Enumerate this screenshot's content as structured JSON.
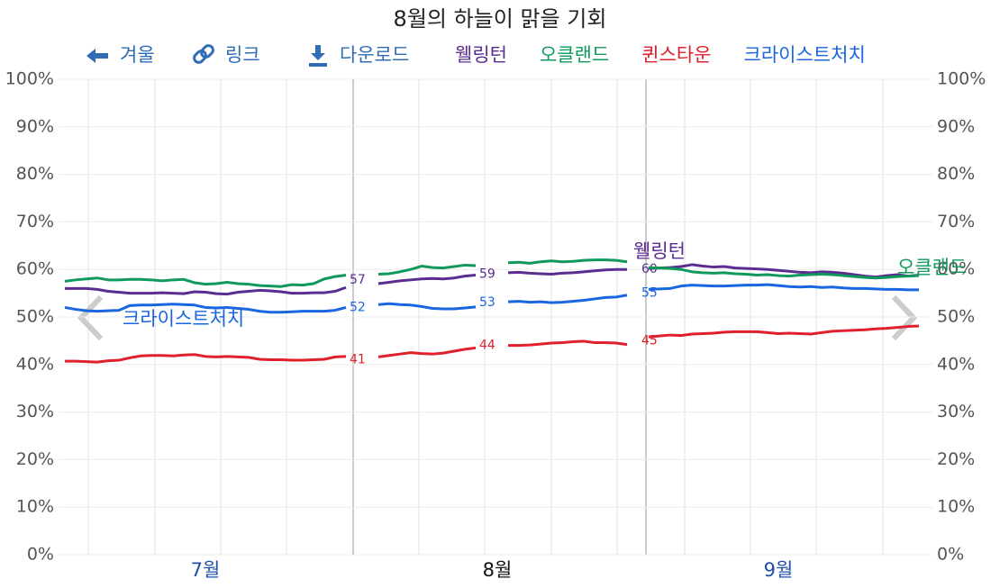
{
  "title": "8월의 하늘이 맑을 기회",
  "nav": [
    "겨울",
    "링크",
    "다운로드"
  ],
  "chart_data": {
    "type": "line",
    "categories": [
      null,
      null,
      null,
      null,
      null,
      null,
      null,
      null,
      null,
      null,
      null,
      null,
      null,
      "7월",
      null,
      null,
      null,
      null,
      null,
      null,
      null,
      null,
      null,
      null,
      null,
      null,
      null,
      null,
      null,
      null,
      null,
      null,
      null,
      null,
      null,
      null,
      null,
      null,
      null,
      null,
      "8월",
      null,
      null,
      null,
      null,
      null,
      null,
      null,
      null,
      null,
      null,
      null,
      null,
      null,
      null,
      null,
      null,
      null,
      null,
      null,
      null,
      null,
      null,
      null,
      null,
      null,
      "9월",
      null,
      null,
      null,
      null,
      null,
      null,
      null,
      null,
      null,
      null,
      null,
      null,
      null
    ],
    "category_label_colors": {
      "7월": "#1f4fa8",
      "8월": "#111111",
      "9월": "#1f4fa8"
    },
    "ylim": [
      0,
      100
    ],
    "yticks": [
      {
        "value": 0,
        "label": "0%"
      },
      {
        "value": 10,
        "label": "10%"
      },
      {
        "value": 20,
        "label": "20%"
      },
      {
        "value": 30,
        "label": "30%"
      },
      {
        "value": 40,
        "label": "40%"
      },
      {
        "value": 50,
        "label": "50%"
      },
      {
        "value": 60,
        "label": "60%"
      },
      {
        "value": 70,
        "label": "70%"
      },
      {
        "value": 80,
        "label": "80%"
      },
      {
        "value": 90,
        "label": "90%"
      },
      {
        "value": 100,
        "label": "100%"
      }
    ],
    "grid": true,
    "series": [
      {
        "name": "웰링턴",
        "color": "#5b2d90",
        "end_labels": [
          57,
          59,
          60
        ],
        "values": [
          56,
          56,
          56,
          55.8,
          55.4,
          55.2,
          55,
          55,
          55,
          55.1,
          55,
          54.9,
          55.3,
          55.2,
          54.9,
          54.8,
          55.2,
          55.4,
          55.6,
          55.5,
          55.3,
          55,
          55,
          55.1,
          55.1,
          55.4,
          56.2,
          null,
          null,
          57,
          57.3,
          57.6,
          57.8,
          58,
          58.1,
          58,
          58.2,
          58.6,
          58.8,
          null,
          null,
          59.3,
          59.4,
          59.2,
          59.1,
          59,
          59.2,
          59.3,
          59.5,
          59.7,
          59.9,
          60,
          60,
          null,
          60.2,
          60.3,
          60.4,
          60.6,
          61,
          60.7,
          60.5,
          60.6,
          60.3,
          60.2,
          60.1,
          60,
          59.8,
          59.6,
          59.4,
          59.3,
          59.5,
          59.4,
          59.2,
          58.9,
          58.6,
          58.4,
          58.7,
          58.9,
          58.6,
          58.8
        ]
      },
      {
        "name": "오클랜드",
        "color": "#0f9a5c",
        "end_labels": [],
        "values": [
          57.5,
          57.8,
          58,
          58.2,
          57.8,
          57.8,
          57.9,
          57.9,
          57.8,
          57.6,
          57.8,
          57.9,
          57.2,
          56.9,
          57,
          57.3,
          57,
          56.9,
          56.6,
          56.5,
          56.4,
          56.8,
          56.7,
          57,
          58,
          58.5,
          58.8,
          null,
          null,
          59,
          59.1,
          59.5,
          60,
          60.7,
          60.4,
          60.3,
          60.6,
          60.9,
          60.8,
          null,
          null,
          61.4,
          61.5,
          61.3,
          61.6,
          61.8,
          61.6,
          61.7,
          61.9,
          62,
          62,
          61.9,
          61.6,
          null,
          60.4,
          60.3,
          60.2,
          60,
          59.5,
          59.3,
          59.2,
          59.3,
          59.1,
          59,
          58.8,
          58.9,
          58.7,
          58.6,
          58.8,
          58.9,
          59,
          58.9,
          58.7,
          58.5,
          58.3,
          58.2,
          58.3,
          58.5,
          58.6,
          58.7
        ]
      },
      {
        "name": "퀸스타운",
        "color": "#e0202c",
        "end_labels": [
          41,
          44,
          45
        ],
        "values": [
          40.7,
          40.7,
          40.6,
          40.5,
          40.8,
          40.9,
          41.4,
          41.8,
          41.9,
          41.9,
          41.8,
          42,
          42.1,
          41.7,
          41.6,
          41.7,
          41.6,
          41.5,
          41.1,
          41,
          41,
          40.9,
          40.9,
          41,
          41.1,
          41.6,
          41.7,
          null,
          null,
          41.6,
          41.9,
          42.2,
          42.5,
          42.3,
          42.2,
          42.4,
          42.8,
          43.2,
          43.5,
          null,
          null,
          44,
          44,
          44.1,
          44.3,
          44.5,
          44.6,
          44.8,
          44.9,
          44.6,
          44.6,
          44.5,
          44.2,
          null,
          45.8,
          46,
          46.2,
          46.1,
          46.4,
          46.5,
          46.6,
          46.8,
          46.9,
          46.9,
          46.9,
          46.7,
          46.5,
          46.6,
          46.5,
          46.4,
          46.7,
          47,
          47.1,
          47.2,
          47.3,
          47.5,
          47.6,
          47.8,
          48,
          48.1
        ]
      },
      {
        "name": "크라이스트처치",
        "color": "#1a66e0",
        "end_labels": [
          52,
          53,
          55
        ],
        "values": [
          52,
          51.6,
          51.3,
          51.2,
          51.3,
          51.4,
          52.4,
          52.5,
          52.5,
          52.6,
          52.7,
          52.6,
          52.5,
          52,
          51.9,
          52,
          51.8,
          51.6,
          51.2,
          51,
          51,
          51.1,
          51.2,
          51.2,
          51.2,
          51.4,
          52,
          null,
          null,
          52.6,
          52.8,
          52.6,
          52.5,
          52.2,
          51.8,
          51.7,
          51.7,
          51.9,
          52.1,
          null,
          null,
          53.2,
          53.3,
          53.1,
          53.2,
          53,
          53.1,
          53.3,
          53.5,
          53.8,
          54.1,
          54.2,
          54.6,
          null,
          55.8,
          55.9,
          56,
          56.5,
          56.7,
          56.6,
          56.5,
          56.5,
          56.6,
          56.7,
          56.7,
          56.8,
          56.6,
          56.4,
          56.3,
          56.4,
          56.2,
          56.3,
          56.1,
          56,
          56,
          55.9,
          55.8,
          55.8,
          55.7,
          55.7
        ]
      }
    ]
  }
}
